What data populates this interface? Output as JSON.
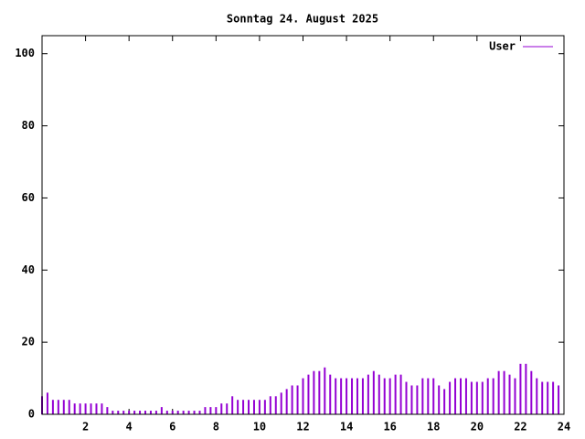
{
  "chart_data": {
    "type": "impulse",
    "title": "Sonntag 24. August 2025",
    "x": [
      0,
      0.25,
      0.5,
      0.75,
      1,
      1.25,
      1.5,
      1.75,
      2,
      2.25,
      2.5,
      2.75,
      3,
      3.25,
      3.5,
      3.75,
      4,
      4.25,
      4.5,
      4.75,
      5,
      5.25,
      5.5,
      5.75,
      6,
      6.25,
      6.5,
      6.75,
      7,
      7.25,
      7.5,
      7.75,
      8,
      8.25,
      8.5,
      8.75,
      9,
      9.25,
      9.5,
      9.75,
      10,
      10.25,
      10.5,
      10.75,
      11,
      11.25,
      11.5,
      11.75,
      12,
      12.25,
      12.5,
      12.75,
      13,
      13.25,
      13.5,
      13.75,
      14,
      14.25,
      14.5,
      14.75,
      15,
      15.25,
      15.5,
      15.75,
      16,
      16.25,
      16.5,
      16.75,
      17,
      17.25,
      17.5,
      17.75,
      18,
      18.25,
      18.5,
      18.75,
      19,
      19.25,
      19.5,
      19.75,
      20,
      20.25,
      20.5,
      20.75,
      21,
      21.25,
      21.5,
      21.75,
      22,
      22.25,
      22.5,
      22.75,
      23,
      23.25,
      23.5,
      23.75
    ],
    "series": [
      {
        "name": "User",
        "color": "#9400d3",
        "values": [
          5,
          6,
          4,
          4,
          4,
          4,
          3,
          3,
          3,
          3,
          3,
          3,
          2,
          1,
          1,
          1,
          1,
          1,
          1,
          1,
          1,
          1,
          2,
          1,
          1,
          1,
          1,
          1,
          1,
          1,
          2,
          2,
          2,
          3,
          3,
          5,
          4,
          4,
          4,
          4,
          4,
          4,
          5,
          5,
          6,
          7,
          8,
          8,
          10,
          11,
          12,
          12,
          13,
          11,
          10,
          10,
          10,
          10,
          10,
          10,
          11,
          12,
          11,
          10,
          10,
          11,
          11,
          9,
          8,
          8,
          10,
          10,
          10,
          8,
          7,
          9,
          10,
          10,
          10,
          9,
          9,
          9,
          10,
          10,
          12,
          12,
          11,
          10,
          14,
          14,
          12,
          10,
          9,
          9,
          9,
          8
        ]
      }
    ],
    "xlim": [
      0,
      24
    ],
    "xticks": [
      2,
      4,
      6,
      8,
      10,
      12,
      14,
      16,
      18,
      20,
      22,
      24
    ],
    "ylim": [
      0,
      105
    ],
    "yticks": [
      0,
      20,
      40,
      60,
      80,
      100
    ],
    "legend": "top-right"
  }
}
